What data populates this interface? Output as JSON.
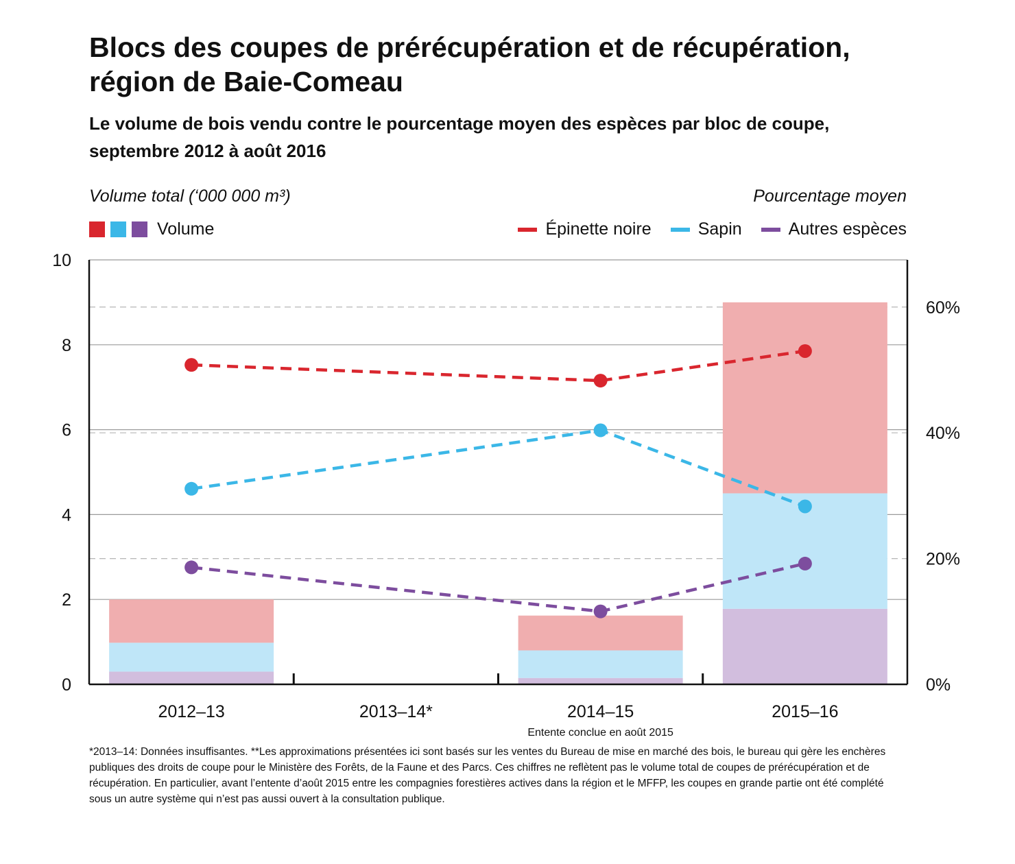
{
  "chart_data": {
    "type": "bar",
    "title": "Blocs des coupes de prérécupération et de récupération, région de Baie-Comeau",
    "subtitle": "Le volume de bois vendu contre le pourcentage moyen des espèces par bloc de coupe, septembre 2012 à août 2016",
    "ylabel_left": "Volume total (‘000 000 m³)",
    "ylabel_right": "Pourcentage moyen",
    "categories": [
      "2012–13",
      "2013–14*",
      "2014–15",
      "2015–16"
    ],
    "category_note": {
      "category": "2014–15",
      "text": "Entente conclue en août 2015"
    },
    "y_left": {
      "min": 0,
      "max": 10,
      "ticks": [
        "0",
        "2",
        "4",
        "6",
        "8",
        "10"
      ]
    },
    "y_right": {
      "min": 0,
      "max": 67.5,
      "ticks": [
        {
          "value": 0,
          "label": "0%"
        },
        {
          "value": 20,
          "label": "20%"
        },
        {
          "value": 40,
          "label": "40%"
        },
        {
          "value": 60,
          "label": "60%"
        }
      ]
    },
    "volume_legend_label": "Volume",
    "volume_series": [
      {
        "name": "Autres espèces",
        "color": "#d2bede",
        "values": [
          0.3,
          null,
          0.15,
          1.78
        ]
      },
      {
        "name": "Sapin",
        "color": "#bfe6f8",
        "values": [
          0.68,
          null,
          0.65,
          2.72
        ]
      },
      {
        "name": "Épinette noire",
        "color": "#f0aeaf",
        "values": [
          1.02,
          null,
          0.82,
          4.5
        ]
      }
    ],
    "line_series": [
      {
        "name": "Épinette noire",
        "color": "#d9262e",
        "values": [
          50.8,
          null,
          48.3,
          53.0
        ]
      },
      {
        "name": "Sapin",
        "color": "#3bb7e7",
        "values": [
          31.1,
          null,
          40.4,
          28.3
        ]
      },
      {
        "name": "Autres espèces",
        "color": "#7d4d9e",
        "values": [
          18.6,
          null,
          11.6,
          19.2
        ]
      }
    ],
    "legend_swatch_colors": [
      "#d9262e",
      "#3bb7e7",
      "#7d4d9e"
    ]
  },
  "footnote": "*2013–14: Données insuffisantes. **Les approximations présentées ici sont basés sur les ventes du Bureau de mise en marché des bois, le bureau qui gère les enchères publiques des droits de coupe pour le Ministère des Forêts, de la Faune et des Parcs. Ces chiffres ne reflètent pas le volume total de coupes de prérécupération et de récupération. En particulier, avant l’entente d’août 2015 entre les compagnies forestières actives dans la région et le MFFP, les coupes en grande partie ont été complété sous un autre système qui n’est pas aussi ouvert à la consultation publique."
}
